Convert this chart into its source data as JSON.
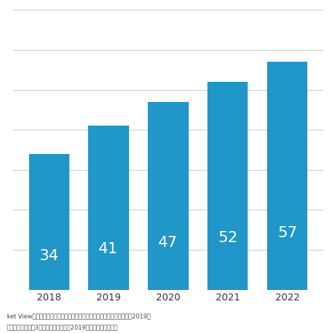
{
  "years": [
    "2018",
    "2019",
    "2020",
    "2021",
    "2022"
  ],
  "values": [
    34,
    41,
    47,
    52,
    57
  ],
  "bar_color": "#2196C9",
  "text_color_white": "#FFFFFF",
  "background_color": "#FFFFFF",
  "grid_color": "#CCCCCC",
  "ylim": [
    0,
    70
  ],
  "ytick_count": 8,
  "label_fontsize": 16,
  "tick_fontsize": 10,
  "note_line1": "ket View：サイバー・セキュリティ・コンサルティング・サービス市場2019」",
  "note_line2": "金額を対象とし、3月期ベースで換算。2019年度以降は予測値。",
  "bar_width": 0.68
}
